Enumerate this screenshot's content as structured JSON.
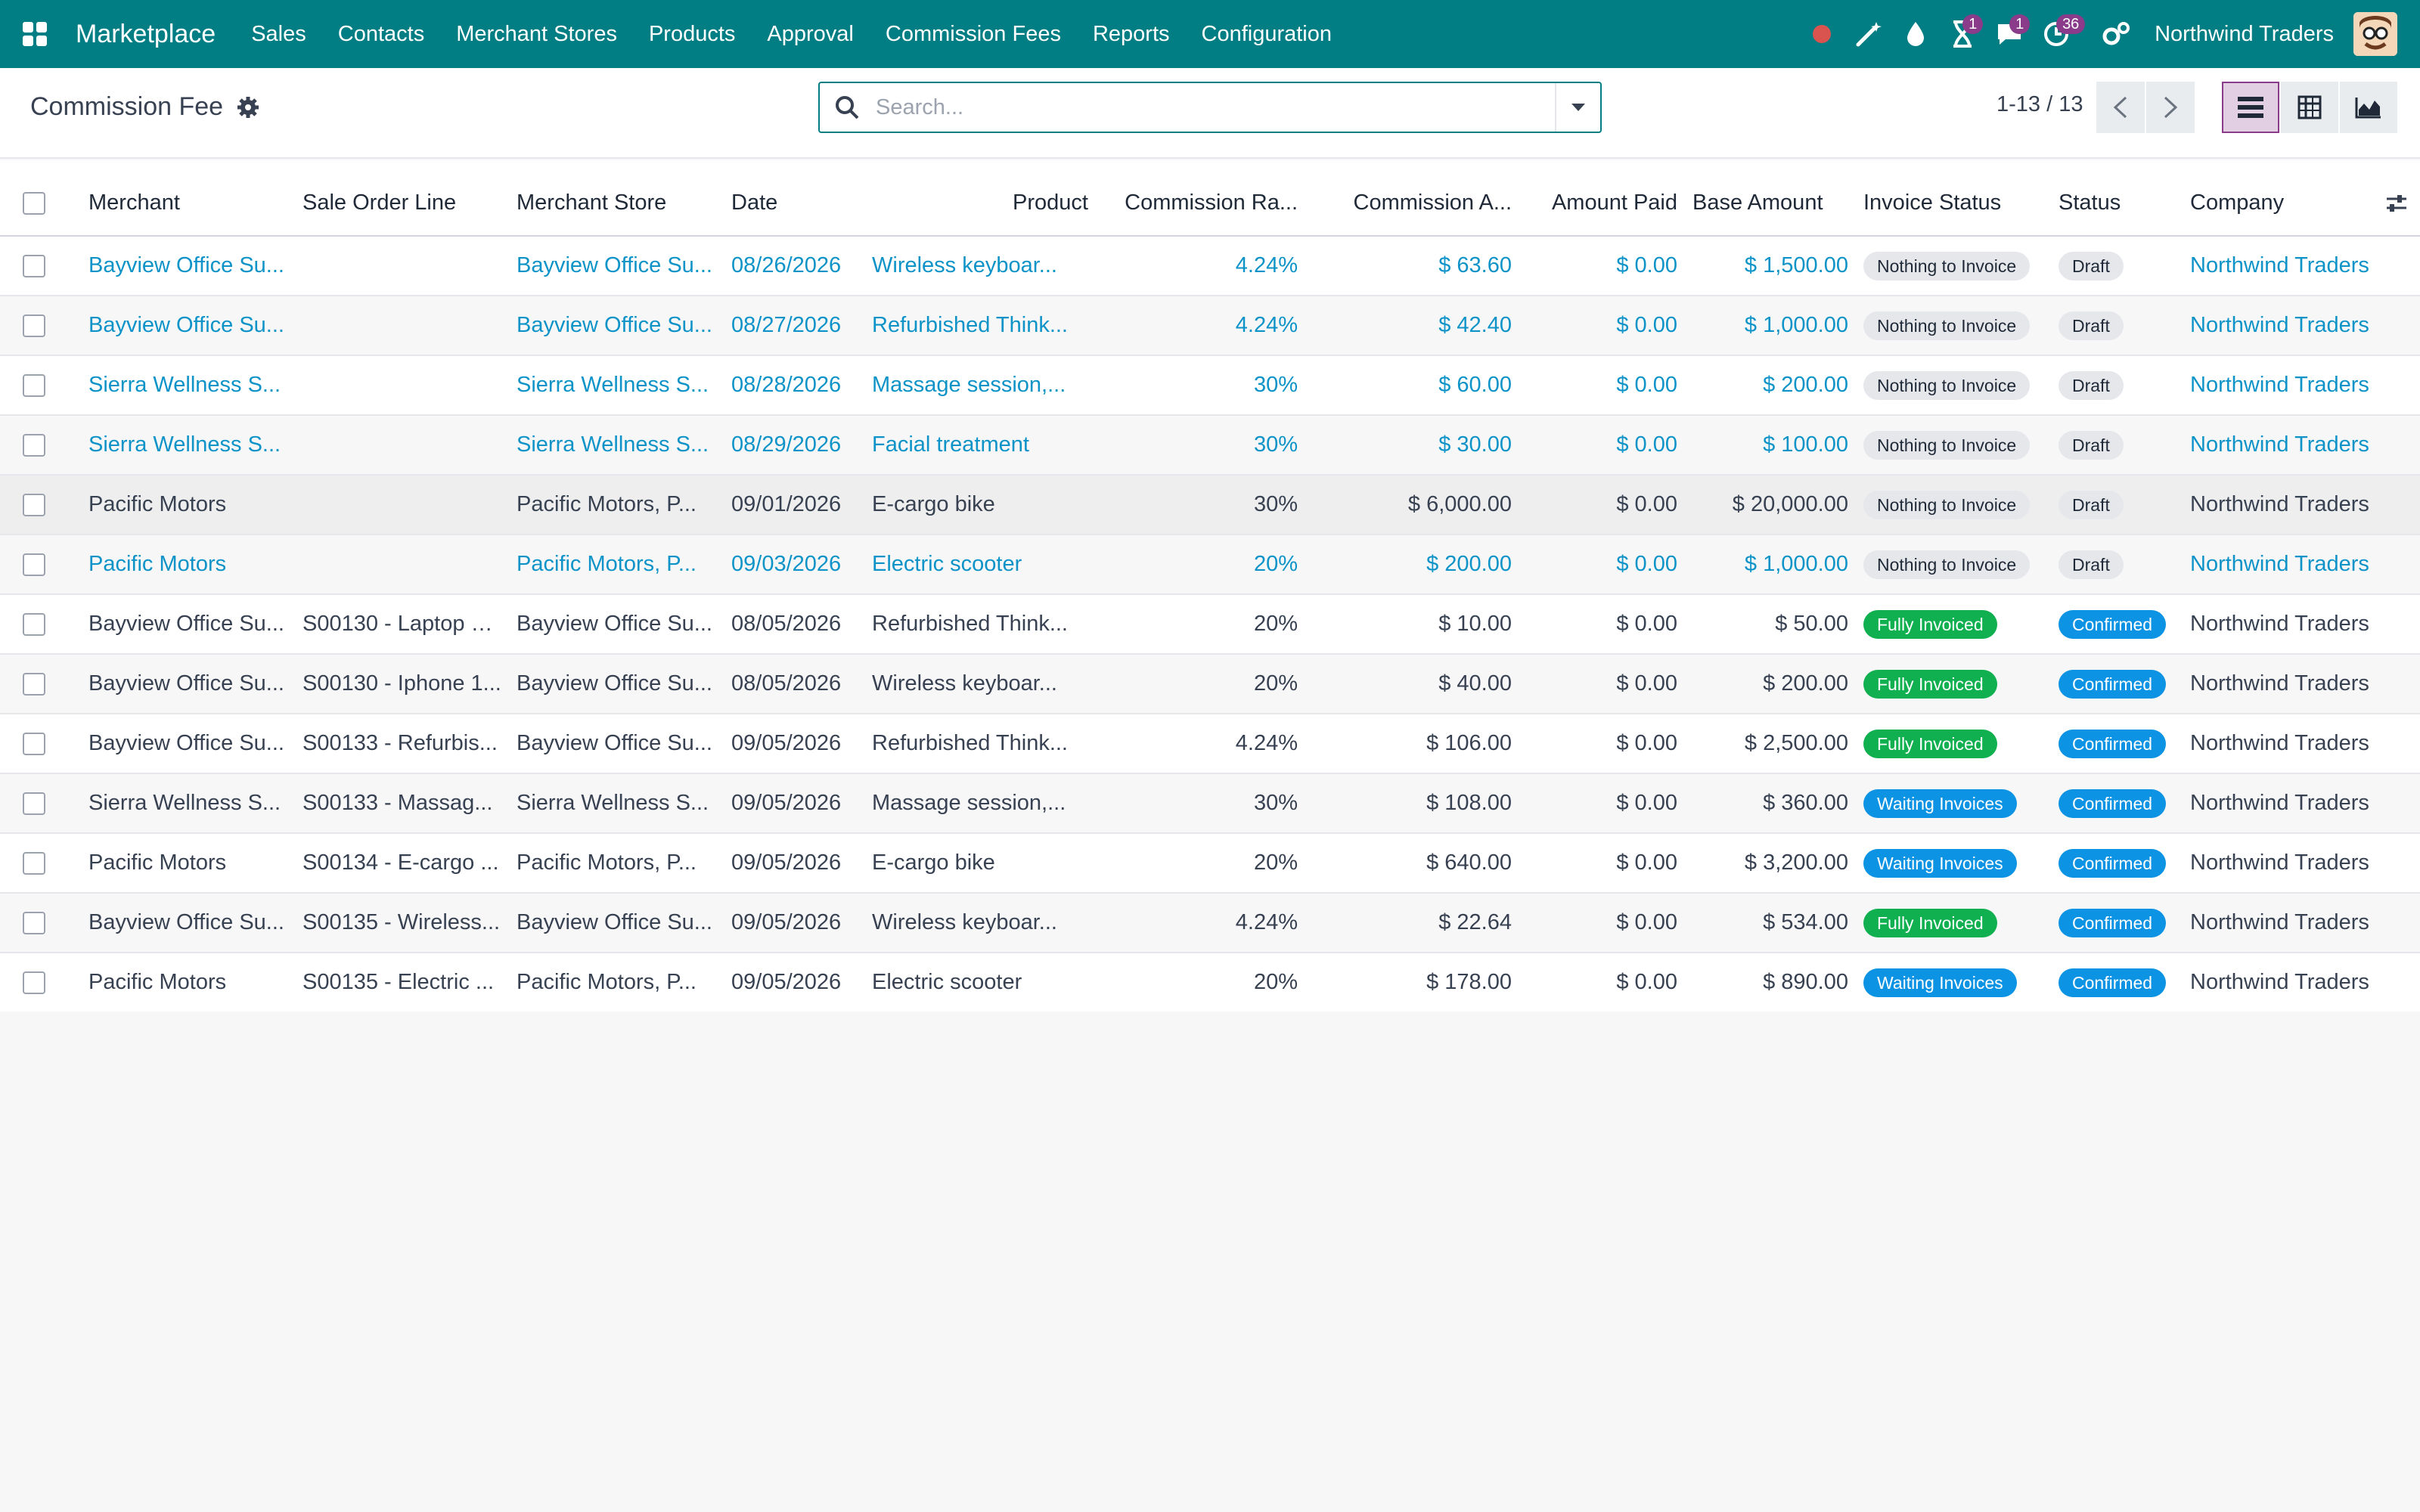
{
  "nav": {
    "app_name": "Marketplace",
    "menu": [
      "Sales",
      "Contacts",
      "Merchant Stores",
      "Products",
      "Approval",
      "Commission Fees",
      "Reports",
      "Configuration"
    ],
    "activity_badge": "1",
    "messages_badge": "1",
    "clock_badge": "36",
    "company": "Northwind Traders",
    "accent_color": "#017e84"
  },
  "control": {
    "title": "Commission Fee",
    "search_placeholder": "Search...",
    "pager": "1-13 / 13"
  },
  "table": {
    "columns": [
      "Merchant",
      "Sale Order Line",
      "Merchant Store",
      "Date",
      "Product",
      "Commission Ra...",
      "Commission A...",
      "Amount Paid",
      "Base Amount",
      "Invoice Status",
      "Status",
      "Company"
    ],
    "rows": [
      {
        "merchant": "Bayview Office Su...",
        "sol": "",
        "store": "Bayview Office Su...",
        "date": "08/26/2026",
        "product": "Wireless keyboar...",
        "rate": "4.24%",
        "amount": "$ 63.60",
        "paid": "$ 0.00",
        "base": "$ 1,500.00",
        "invoice_status": "Nothing to Invoice",
        "status": "Draft",
        "company": "Northwind Traders"
      },
      {
        "merchant": "Bayview Office Su...",
        "sol": "",
        "store": "Bayview Office Su...",
        "date": "08/27/2026",
        "product": "Refurbished Think...",
        "rate": "4.24%",
        "amount": "$ 42.40",
        "paid": "$ 0.00",
        "base": "$ 1,000.00",
        "invoice_status": "Nothing to Invoice",
        "status": "Draft",
        "company": "Northwind Traders"
      },
      {
        "merchant": "Sierra Wellness S...",
        "sol": "",
        "store": "Sierra Wellness S...",
        "date": "08/28/2026",
        "product": "Massage session,...",
        "rate": "30%",
        "amount": "$ 60.00",
        "paid": "$ 0.00",
        "base": "$ 200.00",
        "invoice_status": "Nothing to Invoice",
        "status": "Draft",
        "company": "Northwind Traders"
      },
      {
        "merchant": "Sierra Wellness S...",
        "sol": "",
        "store": "Sierra Wellness S...",
        "date": "08/29/2026",
        "product": "Facial treatment",
        "rate": "30%",
        "amount": "$ 30.00",
        "paid": "$ 0.00",
        "base": "$ 100.00",
        "invoice_status": "Nothing to Invoice",
        "status": "Draft",
        "company": "Northwind Traders"
      },
      {
        "merchant": "Pacific Motors",
        "sol": "",
        "store": "Pacific Motors, P...",
        "date": "09/01/2026",
        "product": "E-cargo bike",
        "rate": "30%",
        "amount": "$ 6,000.00",
        "paid": "$ 0.00",
        "base": "$ 20,000.00",
        "invoice_status": "Nothing to Invoice",
        "status": "Draft",
        "company": "Northwind Traders"
      },
      {
        "merchant": "Pacific Motors",
        "sol": "",
        "store": "Pacific Motors, P...",
        "date": "09/03/2026",
        "product": "Electric scooter",
        "rate": "20%",
        "amount": "$ 200.00",
        "paid": "$ 0.00",
        "base": "$ 1,000.00",
        "invoice_status": "Nothing to Invoice",
        "status": "Draft",
        "company": "Northwind Traders"
      },
      {
        "merchant": "Bayview Office Su...",
        "sol": "S00130 - Laptop D...",
        "store": "Bayview Office Su...",
        "date": "08/05/2026",
        "product": "Refurbished Think...",
        "rate": "20%",
        "amount": "$ 10.00",
        "paid": "$ 0.00",
        "base": "$ 50.00",
        "invoice_status": "Fully Invoiced",
        "status": "Confirmed",
        "company": "Northwind Traders"
      },
      {
        "merchant": "Bayview Office Su...",
        "sol": "S00130 - Iphone 1...",
        "store": "Bayview Office Su...",
        "date": "08/05/2026",
        "product": "Wireless keyboar...",
        "rate": "20%",
        "amount": "$ 40.00",
        "paid": "$ 0.00",
        "base": "$ 200.00",
        "invoice_status": "Fully Invoiced",
        "status": "Confirmed",
        "company": "Northwind Traders"
      },
      {
        "merchant": "Bayview Office Su...",
        "sol": "S00133 - Refurbis...",
        "store": "Bayview Office Su...",
        "date": "09/05/2026",
        "product": "Refurbished Think...",
        "rate": "4.24%",
        "amount": "$ 106.00",
        "paid": "$ 0.00",
        "base": "$ 2,500.00",
        "invoice_status": "Fully Invoiced",
        "status": "Confirmed",
        "company": "Northwind Traders"
      },
      {
        "merchant": "Sierra Wellness S...",
        "sol": "S00133 - Massag...",
        "store": "Sierra Wellness S...",
        "date": "09/05/2026",
        "product": "Massage session,...",
        "rate": "30%",
        "amount": "$ 108.00",
        "paid": "$ 0.00",
        "base": "$ 360.00",
        "invoice_status": "Waiting Invoices",
        "status": "Confirmed",
        "company": "Northwind Traders"
      },
      {
        "merchant": "Pacific Motors",
        "sol": "S00134 - E-cargo ...",
        "store": "Pacific Motors, P...",
        "date": "09/05/2026",
        "product": "E-cargo bike",
        "rate": "20%",
        "amount": "$ 640.00",
        "paid": "$ 0.00",
        "base": "$ 3,200.00",
        "invoice_status": "Waiting Invoices",
        "status": "Confirmed",
        "company": "Northwind Traders"
      },
      {
        "merchant": "Bayview Office Su...",
        "sol": "S00135 - Wireless...",
        "store": "Bayview Office Su...",
        "date": "09/05/2026",
        "product": "Wireless keyboar...",
        "rate": "4.24%",
        "amount": "$ 22.64",
        "paid": "$ 0.00",
        "base": "$ 534.00",
        "invoice_status": "Fully Invoiced",
        "status": "Confirmed",
        "company": "Northwind Traders"
      },
      {
        "merchant": "Pacific Motors",
        "sol": "S00135 - Electric ...",
        "store": "Pacific Motors, P...",
        "date": "09/05/2026",
        "product": "Electric scooter",
        "rate": "20%",
        "amount": "$ 178.00",
        "paid": "$ 0.00",
        "base": "$ 890.00",
        "invoice_status": "Waiting Invoices",
        "status": "Confirmed",
        "company": "Northwind Traders"
      }
    ]
  },
  "colors": {
    "link": "#0d93c7",
    "fully_invoiced": "#10b050",
    "waiting_invoices": "#0d93e3",
    "confirmed": "#0d93e3",
    "draft": "#e5e7eb"
  }
}
